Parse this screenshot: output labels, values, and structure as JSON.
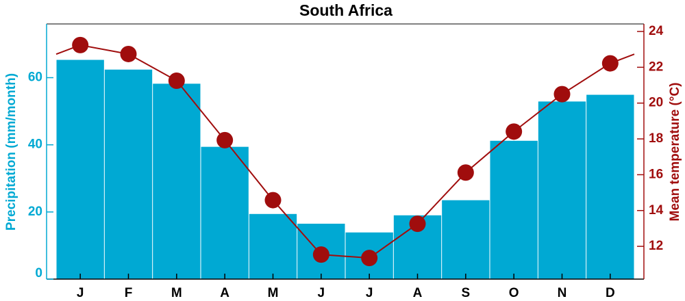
{
  "chart_data": {
    "type": "bar_line",
    "title": "South Africa",
    "ylabel": "Precipitation (mm/month)",
    "y2label": "Mean temperature (°C)",
    "categories": [
      "J",
      "F",
      "M",
      "A",
      "M",
      "J",
      "J",
      "A",
      "S",
      "O",
      "N",
      "D"
    ],
    "series": [
      {
        "name": "Precipitation",
        "type": "bar",
        "color": "#00a9d3",
        "values": [
          65.3,
          62.4,
          58.2,
          39.4,
          19.4,
          16.5,
          13.9,
          19.0,
          23.5,
          41.2,
          52.9,
          54.9
        ]
      },
      {
        "name": "Mean temperature",
        "type": "line",
        "axis": "y2",
        "color": "#a00d0d",
        "values": [
          23.24,
          22.74,
          21.25,
          17.93,
          14.58,
          11.54,
          11.35,
          13.26,
          16.12,
          18.41,
          20.5,
          22.22
        ]
      }
    ],
    "ylim": [
      0,
      76
    ],
    "yticks": [
      0,
      20,
      40,
      60
    ],
    "y2lim": [
      10.17,
      24.42
    ],
    "y2ticks": [
      12,
      14,
      16,
      18,
      20,
      22,
      24
    ]
  }
}
